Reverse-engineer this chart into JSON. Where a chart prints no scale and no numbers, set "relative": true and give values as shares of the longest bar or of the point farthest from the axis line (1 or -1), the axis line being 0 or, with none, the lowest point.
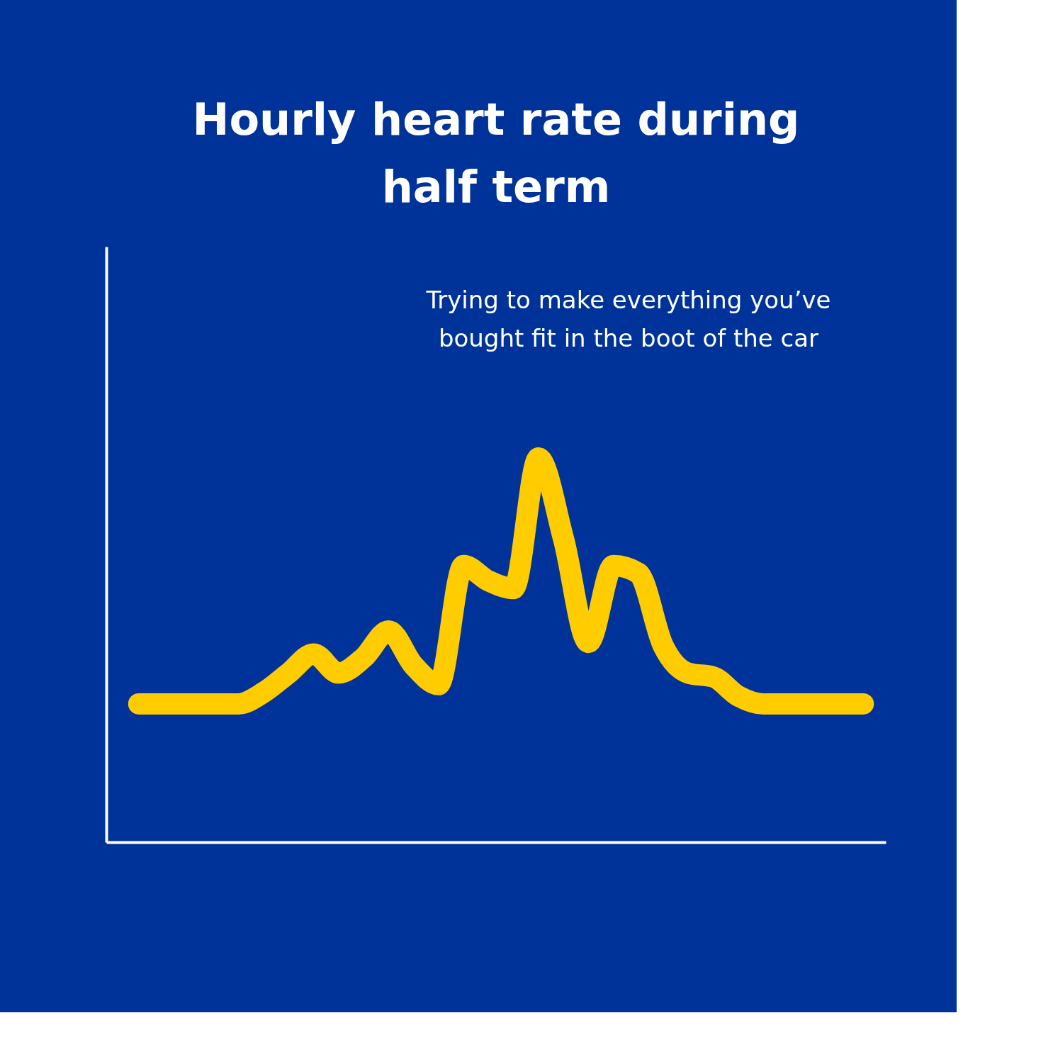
{
  "chart_data": {
    "type": "line",
    "title": "Hourly heart rate during half term",
    "relative": true,
    "categories": [
      null,
      null,
      null,
      null,
      null,
      null,
      null,
      null,
      null,
      null,
      null,
      null,
      null,
      null,
      null,
      null,
      null,
      null,
      null,
      null,
      null,
      null,
      null,
      null,
      null,
      null,
      null,
      null,
      null,
      null
    ],
    "series": [
      {
        "color": "#ffcc00",
        "values": [
          0.36,
          0.36,
          0.36,
          0.36,
          0.36,
          0.39,
          0.44,
          0.49,
          0.44,
          0.48,
          0.55,
          0.46,
          0.41,
          0.72,
          0.68,
          0.66,
          1.0,
          0.79,
          0.52,
          0.72,
          0.7,
          0.51,
          0.44,
          0.43,
          0.38,
          0.36,
          0.36,
          0.36,
          0.36,
          0.36
        ]
      }
    ],
    "annotations": [
      "Trying to make everything you’ve bought fit in the boot of the car"
    ],
    "grid": false,
    "line_style": "solid"
  }
}
